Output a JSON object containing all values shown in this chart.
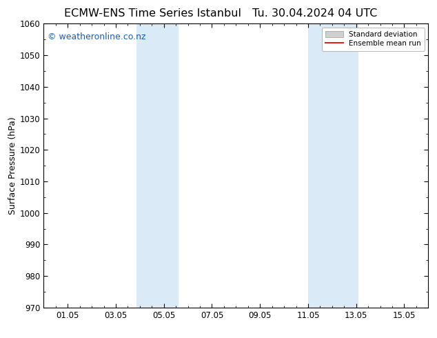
{
  "title_left": "ECMW-ENS Time Series Istanbul",
  "title_right": "Tu. 30.04.2024 04 UTC",
  "ylabel": "Surface Pressure (hPa)",
  "ylim": [
    970,
    1060
  ],
  "yticks": [
    970,
    980,
    990,
    1000,
    1010,
    1020,
    1030,
    1040,
    1050,
    1060
  ],
  "xtick_labels": [
    "01.05",
    "03.05",
    "05.05",
    "07.05",
    "09.05",
    "11.05",
    "13.05",
    "15.05"
  ],
  "xtick_positions": [
    1,
    3,
    5,
    7,
    9,
    11,
    13,
    15
  ],
  "xlim": [
    0,
    16
  ],
  "shaded_bands": [
    {
      "xmin": 3.85,
      "xmax": 5.6,
      "color": "#daeaf7"
    },
    {
      "xmin": 11.0,
      "xmax": 13.1,
      "color": "#daeaf7"
    }
  ],
  "watermark_text": "© weatheronline.co.nz",
  "watermark_color": "#1a5cb5",
  "legend_std_label": "Standard deviation",
  "legend_mean_label": "Ensemble mean run",
  "legend_std_color": "#d0d0d0",
  "legend_mean_color": "#dd2222",
  "background_color": "#ffffff",
  "title_fontsize": 11.5,
  "ylabel_fontsize": 9,
  "tick_fontsize": 8.5,
  "watermark_fontsize": 9
}
